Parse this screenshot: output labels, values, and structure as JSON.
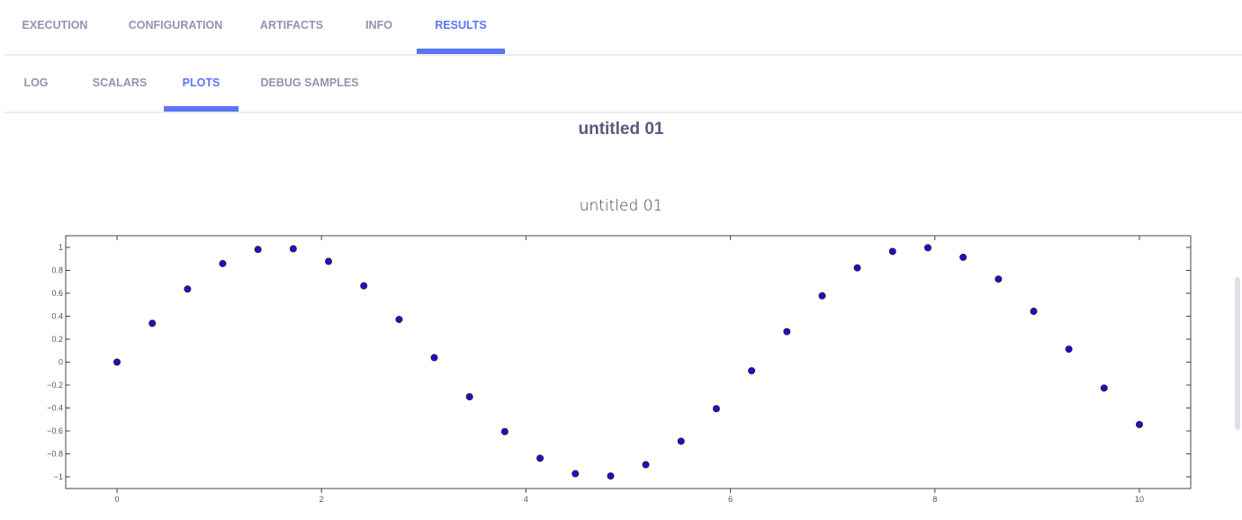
{
  "tabs": [
    {
      "label": "EXECUTION",
      "active": false
    },
    {
      "label": "CONFIGURATION",
      "active": false
    },
    {
      "label": "ARTIFACTS",
      "active": false
    },
    {
      "label": "INFO",
      "active": false
    },
    {
      "label": "RESULTS",
      "active": true
    }
  ],
  "subtabs": [
    {
      "label": "LOG",
      "active": false
    },
    {
      "label": "SCALARS",
      "active": false
    },
    {
      "label": "PLOTS",
      "active": true
    },
    {
      "label": "DEBUG SAMPLES",
      "active": false
    }
  ],
  "accent_color": "#5a75f5",
  "section_title": "untitled 01",
  "chart_data": {
    "type": "scatter",
    "title": "untitled 01",
    "xlabel": "",
    "ylabel": "",
    "xlim": [
      -0.5,
      10.5
    ],
    "ylim": [
      -1.1,
      1.1
    ],
    "xticks": [
      0,
      2,
      4,
      6,
      8,
      10
    ],
    "yticks": [
      1,
      0.8,
      0.6,
      0.4,
      0.2,
      0,
      -0.2,
      -0.4,
      -0.6,
      -0.8,
      -1
    ],
    "ytick_labels": [
      "1",
      "0.8",
      "0.6",
      "0.4",
      "0.2",
      "0",
      "−0.2",
      "−0.4",
      "−0.6",
      "−0.8",
      "−1"
    ],
    "grid": false,
    "marker_color": "#3300cc",
    "x": [
      0,
      0.345,
      0.69,
      1.034,
      1.379,
      1.724,
      2.069,
      2.414,
      2.759,
      3.103,
      3.448,
      3.793,
      4.138,
      4.483,
      4.828,
      5.172,
      5.517,
      5.862,
      6.207,
      6.552,
      6.897,
      7.241,
      7.586,
      7.931,
      8.276,
      8.621,
      8.966,
      9.31,
      9.655,
      10
    ],
    "y": [
      0,
      0.338,
      0.637,
      0.859,
      0.982,
      0.988,
      0.878,
      0.665,
      0.372,
      0.039,
      -0.302,
      -0.606,
      -0.838,
      -0.973,
      -0.993,
      -0.894,
      -0.69,
      -0.406,
      -0.075,
      0.266,
      0.578,
      0.822,
      0.965,
      0.997,
      0.914,
      0.724,
      0.443,
      0.113,
      -0.226,
      -0.544
    ]
  }
}
